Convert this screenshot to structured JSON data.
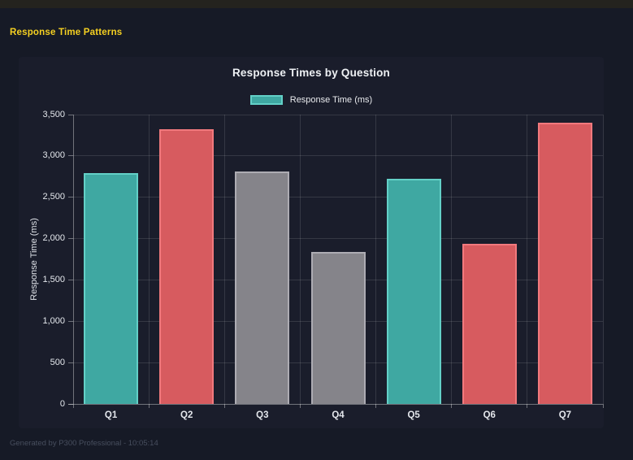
{
  "window": {
    "top_strip_color": "#24231e"
  },
  "header": {
    "title": "Response Time Patterns",
    "color": "#f5d021"
  },
  "footer": {
    "text": "Generated by P300 Professional - 10:05:14",
    "color": "#474e5e"
  },
  "colors": {
    "page_bg": "#161a26",
    "panel_bg": "#1a1d2b",
    "text": "#e4e7ec",
    "grid": "rgba(255,255,255,0.12)",
    "axis": "rgba(255,255,255,0.38)"
  },
  "palette": {
    "teal": {
      "fill": "#3fa8a2",
      "border": "#63d0c7"
    },
    "red": {
      "fill": "#d75b5f",
      "border": "#f1797d"
    },
    "gray": {
      "fill": "#85848a",
      "border": "#adacb3"
    }
  },
  "chart_data": {
    "type": "bar",
    "title": "Response Times by Question",
    "legend": [
      {
        "label": "Response Time (ms)",
        "color": "teal"
      }
    ],
    "legend_position": "top",
    "xlabel": "",
    "ylabel": "Response Time (ms)",
    "categories": [
      "Q1",
      "Q2",
      "Q3",
      "Q4",
      "Q5",
      "Q6",
      "Q7"
    ],
    "values": [
      2790,
      3320,
      2810,
      1840,
      2720,
      1940,
      3400
    ],
    "bar_colors": [
      "teal",
      "red",
      "gray",
      "gray",
      "teal",
      "red",
      "red"
    ],
    "ylim": [
      0,
      3500
    ],
    "ytick_step": 500,
    "grid": true
  }
}
